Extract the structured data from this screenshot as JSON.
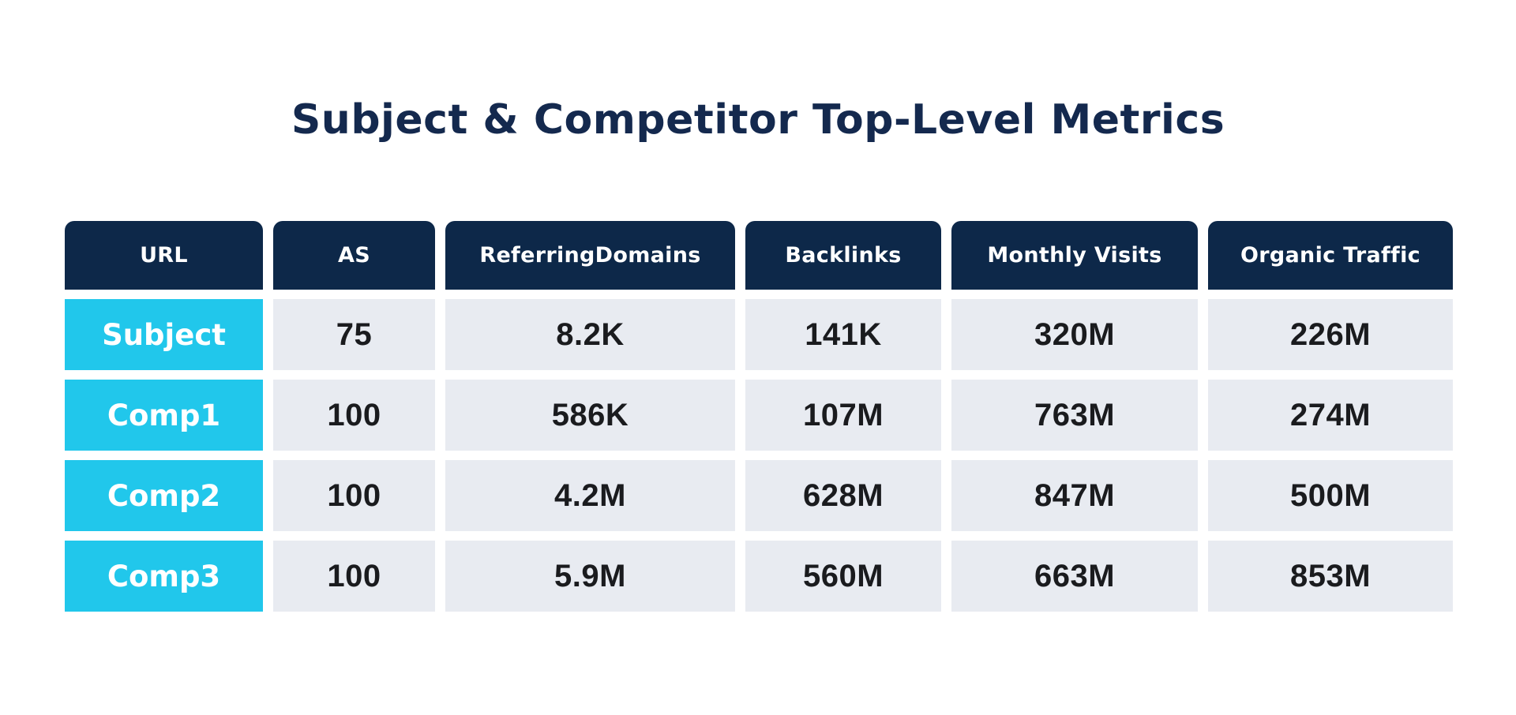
{
  "title": "Subject & Competitor Top-Level Metrics",
  "colors": {
    "page_bg": "#FFFFFF",
    "title_text": "#14294E",
    "header_bg": "#0D2849",
    "header_text": "#FFFFFF",
    "row_label_bg": "#21C7EB",
    "row_label_text": "#FFFFFF",
    "cell_bg": "#E8EBF1",
    "cell_text": "#1A1B1E"
  },
  "table": {
    "columns": [
      "URL",
      "AS",
      "ReferringDomains",
      "Backlinks",
      "Monthly Visits",
      "Organic Traffic"
    ],
    "rows": [
      {
        "label": "Subject",
        "values": [
          "75",
          "8.2K",
          "141K",
          "320M",
          "226M"
        ]
      },
      {
        "label": "Comp1",
        "values": [
          "100",
          "586K",
          "107M",
          "763M",
          "274M"
        ]
      },
      {
        "label": "Comp2",
        "values": [
          "100",
          "4.2M",
          "628M",
          "847M",
          "500M"
        ]
      },
      {
        "label": "Comp3",
        "values": [
          "100",
          "5.9M",
          "560M",
          "663M",
          "853M"
        ]
      }
    ]
  },
  "chart_data": {
    "type": "table",
    "title": "Subject & Competitor Top-Level Metrics",
    "columns": [
      "URL",
      "AS",
      "ReferringDomains",
      "Backlinks",
      "Monthly Visits",
      "Organic Traffic"
    ],
    "rows": [
      [
        "Subject",
        "75",
        "8.2K",
        "141K",
        "320M",
        "226M"
      ],
      [
        "Comp1",
        "100",
        "586K",
        "107M",
        "763M",
        "274M"
      ],
      [
        "Comp2",
        "100",
        "4.2M",
        "628M",
        "847M",
        "500M"
      ],
      [
        "Comp3",
        "100",
        "5.9M",
        "560M",
        "663M",
        "853M"
      ]
    ],
    "rows_numeric": [
      [
        "Subject",
        75,
        8200,
        141000,
        320000000,
        226000000
      ],
      [
        "Comp1",
        100,
        586000,
        107000000,
        763000000,
        274000000
      ],
      [
        "Comp2",
        100,
        4200000,
        628000000,
        847000000,
        500000000
      ],
      [
        "Comp3",
        100,
        5900000,
        560000000,
        663000000,
        853000000
      ]
    ],
    "layout": {
      "header_position": "top",
      "row_label_column": "URL",
      "grid": "off"
    }
  }
}
